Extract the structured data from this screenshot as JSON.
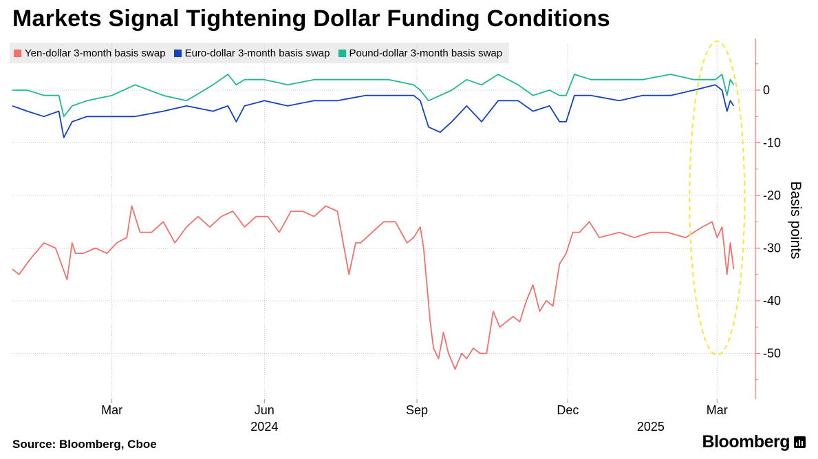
{
  "header": {
    "title": "Markets Signal Tightening Dollar Funding Conditions"
  },
  "footer": {
    "source": "Source: Bloomberg, Cboe",
    "brand": "Bloomberg"
  },
  "legend": {
    "items": [
      {
        "label": "Yen-dollar 3-month basis swap",
        "color": "#f2716c"
      },
      {
        "label": "Euro-dollar 3-month basis swap",
        "color": "#1440c8"
      },
      {
        "label": "Pound-dollar 3-month basis swap",
        "color": "#20b98f"
      }
    ]
  },
  "chart_data": {
    "type": "line",
    "title": "Markets Signal Tightening Dollar Funding Conditions",
    "ylabel": "Basis points",
    "xlabel": "",
    "ylim": [
      -58,
      10
    ],
    "yticks": [
      0,
      -10,
      -20,
      -30,
      -40,
      -50
    ],
    "ytick_labels": [
      "0",
      "-10",
      "-20",
      "-30",
      "-40",
      "-50"
    ],
    "xlim": [
      "2024-01-01",
      "2025-03-15"
    ],
    "xticks": [
      {
        "date": "2024-03-01",
        "label": "Mar"
      },
      {
        "date": "2024-06-01",
        "label": "Jun"
      },
      {
        "date": "2024-09-01",
        "label": "Sep"
      },
      {
        "date": "2024-12-01",
        "label": "Dec"
      },
      {
        "date": "2025-03-01",
        "label": "Mar"
      }
    ],
    "year_labels": [
      {
        "date": "2024-06-01",
        "label": "2024"
      },
      {
        "date": "2025-01-20",
        "label": "2025"
      }
    ],
    "grid": true,
    "y_axis_side": "right",
    "series": [
      {
        "name": "Yen-dollar 3-month basis swap",
        "color": "#f2716c",
        "x": [
          "2024-01-01",
          "2024-01-05",
          "2024-01-12",
          "2024-01-20",
          "2024-01-27",
          "2024-02-03",
          "2024-02-06",
          "2024-02-08",
          "2024-02-13",
          "2024-02-20",
          "2024-02-27",
          "2024-03-04",
          "2024-03-10",
          "2024-03-13",
          "2024-03-18",
          "2024-03-25",
          "2024-04-01",
          "2024-04-08",
          "2024-04-15",
          "2024-04-22",
          "2024-04-29",
          "2024-05-06",
          "2024-05-13",
          "2024-05-20",
          "2024-05-27",
          "2024-06-03",
          "2024-06-10",
          "2024-06-17",
          "2024-06-24",
          "2024-07-01",
          "2024-07-08",
          "2024-07-15",
          "2024-07-22",
          "2024-07-26",
          "2024-07-29",
          "2024-08-05",
          "2024-08-12",
          "2024-08-19",
          "2024-08-26",
          "2024-08-30",
          "2024-09-03",
          "2024-09-05",
          "2024-09-09",
          "2024-09-11",
          "2024-09-14",
          "2024-09-17",
          "2024-09-20",
          "2024-09-24",
          "2024-09-28",
          "2024-10-01",
          "2024-10-05",
          "2024-10-09",
          "2024-10-13",
          "2024-10-17",
          "2024-10-21",
          "2024-10-25",
          "2024-10-29",
          "2024-11-02",
          "2024-11-06",
          "2024-11-10",
          "2024-11-14",
          "2024-11-18",
          "2024-11-22",
          "2024-11-26",
          "2024-11-30",
          "2024-12-04",
          "2024-12-08",
          "2024-12-14",
          "2024-12-20",
          "2025-01-01",
          "2025-01-10",
          "2025-01-20",
          "2025-01-30",
          "2025-02-10",
          "2025-02-20",
          "2025-02-26",
          "2025-03-01",
          "2025-03-04",
          "2025-03-07",
          "2025-03-09",
          "2025-03-11"
        ],
        "values": [
          -34,
          -35,
          -32,
          -29,
          -30,
          -36,
          -29,
          -31,
          -31,
          -30,
          -31,
          -29,
          -28,
          -22,
          -27,
          -27,
          -25,
          -29,
          -26,
          -24,
          -26,
          -24,
          -23,
          -26,
          -24,
          -24,
          -27,
          -23,
          -23,
          -24,
          -22,
          -23,
          -35,
          -29,
          -29,
          -27,
          -25,
          -25,
          -29,
          -28,
          -26,
          -30,
          -44,
          -49,
          -51,
          -46,
          -50,
          -53,
          -50,
          -51,
          -49,
          -50,
          -50,
          -42,
          -45,
          -44,
          -43,
          -44,
          -40,
          -37,
          -42,
          -40,
          -41,
          -33,
          -31,
          -27,
          -27,
          -25,
          -28,
          -27,
          -28,
          -27,
          -27,
          -28,
          -26,
          -25,
          -28,
          -26,
          -35,
          -29,
          -34
        ],
        "note": "dates approximate"
      },
      {
        "name": "Euro-dollar 3-month basis swap",
        "color": "#1440c8",
        "x": [
          "2024-01-01",
          "2024-01-10",
          "2024-01-20",
          "2024-01-29",
          "2024-02-01",
          "2024-02-06",
          "2024-02-15",
          "2024-03-01",
          "2024-03-15",
          "2024-04-01",
          "2024-04-15",
          "2024-05-01",
          "2024-05-10",
          "2024-05-15",
          "2024-05-20",
          "2024-06-01",
          "2024-06-15",
          "2024-07-01",
          "2024-07-15",
          "2024-08-01",
          "2024-08-15",
          "2024-08-30",
          "2024-09-03",
          "2024-09-08",
          "2024-09-15",
          "2024-09-22",
          "2024-10-01",
          "2024-10-10",
          "2024-10-20",
          "2024-11-01",
          "2024-11-10",
          "2024-11-20",
          "2024-11-26",
          "2024-11-30",
          "2024-12-05",
          "2024-12-15",
          "2025-01-01",
          "2025-01-15",
          "2025-02-01",
          "2025-02-15",
          "2025-02-28",
          "2025-03-04",
          "2025-03-07",
          "2025-03-09",
          "2025-03-11"
        ],
        "values": [
          -3,
          -4,
          -5,
          -4,
          -9,
          -6,
          -5,
          -5,
          -5,
          -4,
          -3,
          -4,
          -3,
          -6,
          -3,
          -2,
          -3,
          -2,
          -2,
          -1,
          -1,
          -1,
          -2,
          -7,
          -8,
          -6,
          -3,
          -6,
          -2,
          -2,
          -4,
          -3,
          -6,
          -6,
          -1,
          -1,
          -2,
          -1,
          -1,
          0,
          1,
          0,
          -4,
          -2,
          -3
        ],
        "note": "dates approximate"
      },
      {
        "name": "Pound-dollar 3-month basis swap",
        "color": "#20b98f",
        "x": [
          "2024-01-01",
          "2024-01-10",
          "2024-01-20",
          "2024-01-29",
          "2024-02-01",
          "2024-02-06",
          "2024-02-15",
          "2024-03-01",
          "2024-03-15",
          "2024-04-01",
          "2024-04-15",
          "2024-05-01",
          "2024-05-10",
          "2024-05-15",
          "2024-05-20",
          "2024-06-01",
          "2024-06-15",
          "2024-07-01",
          "2024-07-15",
          "2024-08-01",
          "2024-08-15",
          "2024-08-30",
          "2024-09-03",
          "2024-09-08",
          "2024-09-15",
          "2024-09-22",
          "2024-10-01",
          "2024-10-10",
          "2024-10-20",
          "2024-11-01",
          "2024-11-10",
          "2024-11-20",
          "2024-11-26",
          "2024-11-30",
          "2024-12-05",
          "2024-12-15",
          "2025-01-01",
          "2025-01-15",
          "2025-02-01",
          "2025-02-15",
          "2025-02-28",
          "2025-03-04",
          "2025-03-07",
          "2025-03-09",
          "2025-03-11"
        ],
        "values": [
          0,
          0,
          -1,
          -1,
          -5,
          -3,
          -2,
          -1,
          1,
          -1,
          -2,
          1,
          3,
          1,
          2,
          2,
          1,
          2,
          2,
          2,
          2,
          1,
          0,
          -2,
          -1,
          0,
          2,
          1,
          3,
          1,
          -1,
          0,
          -1,
          -1,
          3,
          2,
          2,
          2,
          3,
          2,
          2,
          3,
          -1,
          2,
          1
        ],
        "note": "dates approximate"
      }
    ],
    "annotations": [
      {
        "type": "dashed-ellipse",
        "color": "#f4e83a",
        "date_center": "2025-03-01",
        "y_center": -20.5,
        "description": "highlights recent move"
      }
    ]
  }
}
